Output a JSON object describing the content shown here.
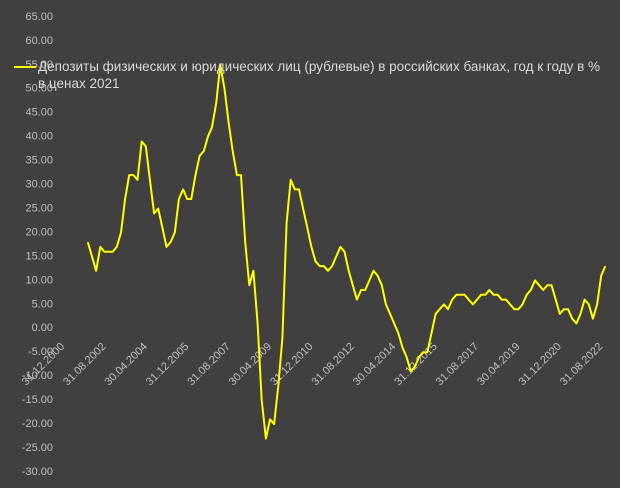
{
  "chart_data": {
    "type": "line",
    "categories": [
      "31.12.2000",
      null,
      null,
      null,
      null,
      null,
      null,
      null,
      null,
      null,
      "31.08.2002",
      null,
      null,
      null,
      null,
      null,
      null,
      null,
      null,
      null,
      "30.04.2004",
      null,
      null,
      null,
      null,
      null,
      null,
      null,
      null,
      null,
      "31.12.2005",
      null,
      null,
      null,
      null,
      null,
      null,
      null,
      null,
      null,
      "31.08.2007",
      null,
      null,
      null,
      null,
      null,
      null,
      null,
      null,
      null,
      "30.04.2009",
      null,
      null,
      null,
      null,
      null,
      null,
      null,
      null,
      null,
      "31.12.2010",
      null,
      null,
      null,
      null,
      null,
      null,
      null,
      null,
      null,
      "31.08.2012",
      null,
      null,
      null,
      null,
      null,
      null,
      null,
      null,
      null,
      "30.04.2014",
      null,
      null,
      null,
      null,
      null,
      null,
      null,
      null,
      null,
      "31.12.2015",
      null,
      null,
      null,
      null,
      null,
      null,
      null,
      null,
      null,
      "31.08.2017",
      null,
      null,
      null,
      null,
      null,
      null,
      null,
      null,
      null,
      "30.04.2019",
      null,
      null,
      null,
      null,
      null,
      null,
      null,
      null,
      null,
      "31.12.2020",
      null,
      null,
      null,
      null,
      null,
      null,
      null,
      null,
      null,
      "31.08.2022",
      null
    ],
    "series": [
      {
        "name": "Депозиты физических и юридических лиц (рублевые) в российских банках, год к году в % в ценах 2021",
        "color": "#ffff00",
        "values": [
          null,
          null,
          null,
          null,
          null,
          null,
          18,
          15,
          12,
          17,
          16,
          16,
          16,
          17,
          20,
          27,
          32,
          32,
          31,
          39,
          38,
          31,
          24,
          25,
          21,
          17,
          18,
          20,
          27,
          29,
          27,
          27,
          32,
          36,
          37,
          40,
          42,
          47,
          55,
          50,
          43,
          37,
          32,
          32,
          18,
          9,
          12,
          1,
          -15,
          -23,
          -19,
          -20,
          -12,
          -2,
          22,
          31,
          29,
          29,
          25,
          21,
          17,
          14,
          13,
          13,
          12,
          13,
          15,
          17,
          16,
          12,
          9,
          6,
          8,
          8,
          10,
          12,
          11,
          9,
          5,
          3,
          1,
          -1,
          -4,
          -6,
          -9,
          -8,
          -6,
          -5,
          -5,
          -1,
          3,
          4,
          5,
          4,
          6,
          7,
          7,
          7,
          6,
          5,
          6,
          7,
          7,
          8,
          7,
          7,
          6,
          6,
          5,
          4,
          4,
          5,
          7,
          8,
          10,
          9,
          8,
          9,
          9,
          6,
          3,
          4,
          4,
          2,
          1,
          3,
          6,
          5,
          2,
          5,
          11,
          13
        ]
      }
    ],
    "ylim": [
      -30,
      65
    ],
    "yticks": [
      {
        "value": -30,
        "label": "-30.00"
      },
      {
        "value": -25,
        "label": "-25.00"
      },
      {
        "value": -20,
        "label": "-20.00"
      },
      {
        "value": -15,
        "label": "-15.00"
      },
      {
        "value": -10,
        "label": "-10.00"
      },
      {
        "value": -5,
        "label": "-5.00"
      },
      {
        "value": 0,
        "label": "0.00"
      },
      {
        "value": 5,
        "label": "5.00"
      },
      {
        "value": 10,
        "label": "10.00"
      },
      {
        "value": 15,
        "label": "15.00"
      },
      {
        "value": 20,
        "label": "20.00"
      },
      {
        "value": 25,
        "label": "25.00"
      },
      {
        "value": 30,
        "label": "30.00"
      },
      {
        "value": 35,
        "label": "35.00"
      },
      {
        "value": 40,
        "label": "40.00"
      },
      {
        "value": 45,
        "label": "45.00"
      },
      {
        "value": 50,
        "label": "50.00"
      },
      {
        "value": 55,
        "label": "55.00"
      },
      {
        "value": 60,
        "label": "60.00"
      },
      {
        "value": 65,
        "label": "65.00"
      }
    ],
    "grid": false
  }
}
